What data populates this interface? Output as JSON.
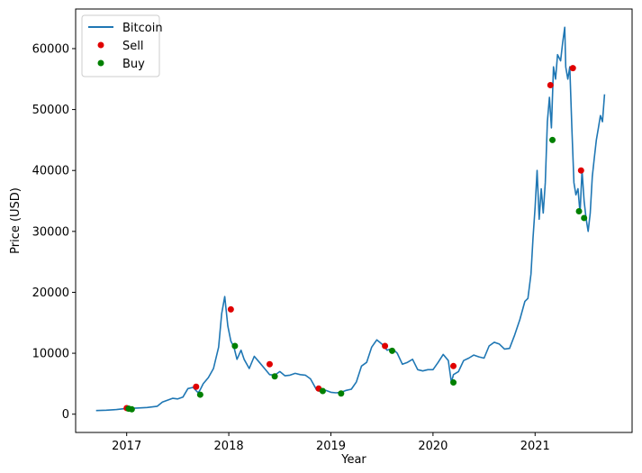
{
  "chart_data": {
    "type": "line",
    "title": "",
    "xlabel": "Year",
    "ylabel": "Price (USD)",
    "x_ticks": [
      2017,
      2018,
      2019,
      2020,
      2021
    ],
    "y_ticks": [
      0,
      10000,
      20000,
      30000,
      40000,
      50000,
      60000
    ],
    "xlim": [
      2016.5,
      2021.95
    ],
    "ylim": [
      -3000,
      66500
    ],
    "legend_position": "top-left",
    "grid": false,
    "colors": {
      "line": "#1f77b4",
      "sell": "#e00000",
      "buy": "#008000"
    },
    "series": [
      {
        "name": "Bitcoin",
        "kind": "line",
        "x": [
          2016.7,
          2016.8,
          2016.9,
          2017.0,
          2017.1,
          2017.2,
          2017.3,
          2017.35,
          2017.45,
          2017.5,
          2017.55,
          2017.6,
          2017.65,
          2017.7,
          2017.72,
          2017.75,
          2017.8,
          2017.85,
          2017.9,
          2017.93,
          2017.96,
          2017.99,
          2018.02,
          2018.05,
          2018.08,
          2018.12,
          2018.15,
          2018.2,
          2018.25,
          2018.3,
          2018.35,
          2018.4,
          2018.45,
          2018.5,
          2018.55,
          2018.6,
          2018.65,
          2018.7,
          2018.75,
          2018.8,
          2018.86,
          2018.88,
          2018.92,
          2018.95,
          2019.0,
          2019.05,
          2019.1,
          2019.15,
          2019.2,
          2019.25,
          2019.3,
          2019.35,
          2019.4,
          2019.45,
          2019.5,
          2019.55,
          2019.6,
          2019.65,
          2019.7,
          2019.75,
          2019.8,
          2019.85,
          2019.9,
          2019.95,
          2020.0,
          2020.05,
          2020.1,
          2020.15,
          2020.18,
          2020.2,
          2020.25,
          2020.3,
          2020.35,
          2020.4,
          2020.45,
          2020.5,
          2020.55,
          2020.6,
          2020.65,
          2020.7,
          2020.75,
          2020.8,
          2020.85,
          2020.9,
          2020.93,
          2020.96,
          2020.98,
          2021.0,
          2021.02,
          2021.04,
          2021.06,
          2021.08,
          2021.1,
          2021.12,
          2021.14,
          2021.16,
          2021.18,
          2021.2,
          2021.22,
          2021.25,
          2021.27,
          2021.29,
          2021.3,
          2021.32,
          2021.34,
          2021.36,
          2021.38,
          2021.4,
          2021.42,
          2021.44,
          2021.46,
          2021.48,
          2021.5,
          2021.52,
          2021.54,
          2021.56,
          2021.58,
          2021.6,
          2021.62,
          2021.64,
          2021.66,
          2021.68
        ],
        "y": [
          600,
          650,
          750,
          950,
          1000,
          1100,
          1300,
          2000,
          2600,
          2500,
          2800,
          4200,
          4400,
          3500,
          4000,
          5000,
          6000,
          7500,
          11000,
          16500,
          19300,
          14500,
          12000,
          11000,
          9000,
          10500,
          9000,
          7500,
          9500,
          8500,
          7500,
          6500,
          6400,
          7000,
          6300,
          6400,
          6700,
          6500,
          6400,
          5800,
          4000,
          3800,
          3700,
          3900,
          3600,
          3500,
          3600,
          3900,
          4100,
          5300,
          7900,
          8500,
          11000,
          12200,
          11500,
          10500,
          10800,
          10000,
          8200,
          8500,
          9000,
          7300,
          7100,
          7300,
          7300,
          8500,
          9800,
          8800,
          5200,
          6500,
          7000,
          8800,
          9200,
          9700,
          9400,
          9200,
          11200,
          11800,
          11500,
          10700,
          10800,
          13000,
          15500,
          18500,
          19000,
          23000,
          29000,
          34000,
          40000,
          32000,
          37000,
          33000,
          38000,
          48000,
          52000,
          47000,
          57000,
          55000,
          59000,
          58000,
          61000,
          63500,
          57000,
          55000,
          57000,
          47000,
          38000,
          36000,
          37000,
          33000,
          40000,
          35000,
          32000,
          30000,
          33000,
          39000,
          42000,
          45000,
          47000,
          49000,
          48000,
          52500
        ]
      },
      {
        "name": "Sell",
        "kind": "scatter",
        "x": [
          2017.0,
          2017.68,
          2018.02,
          2018.4,
          2018.88,
          2019.53,
          2020.2,
          2021.15,
          2021.37,
          2021.45
        ],
        "y": [
          1000,
          4500,
          17200,
          8200,
          4200,
          11200,
          7900,
          54000,
          56800,
          40000
        ]
      },
      {
        "name": "Buy",
        "kind": "scatter",
        "x": [
          2017.02,
          2017.05,
          2017.72,
          2018.06,
          2018.45,
          2018.92,
          2019.1,
          2019.6,
          2020.2,
          2021.17,
          2021.43,
          2021.48
        ],
        "y": [
          900,
          800,
          3200,
          11200,
          6200,
          3800,
          3400,
          10400,
          5200,
          45000,
          33300,
          32200
        ]
      }
    ]
  }
}
